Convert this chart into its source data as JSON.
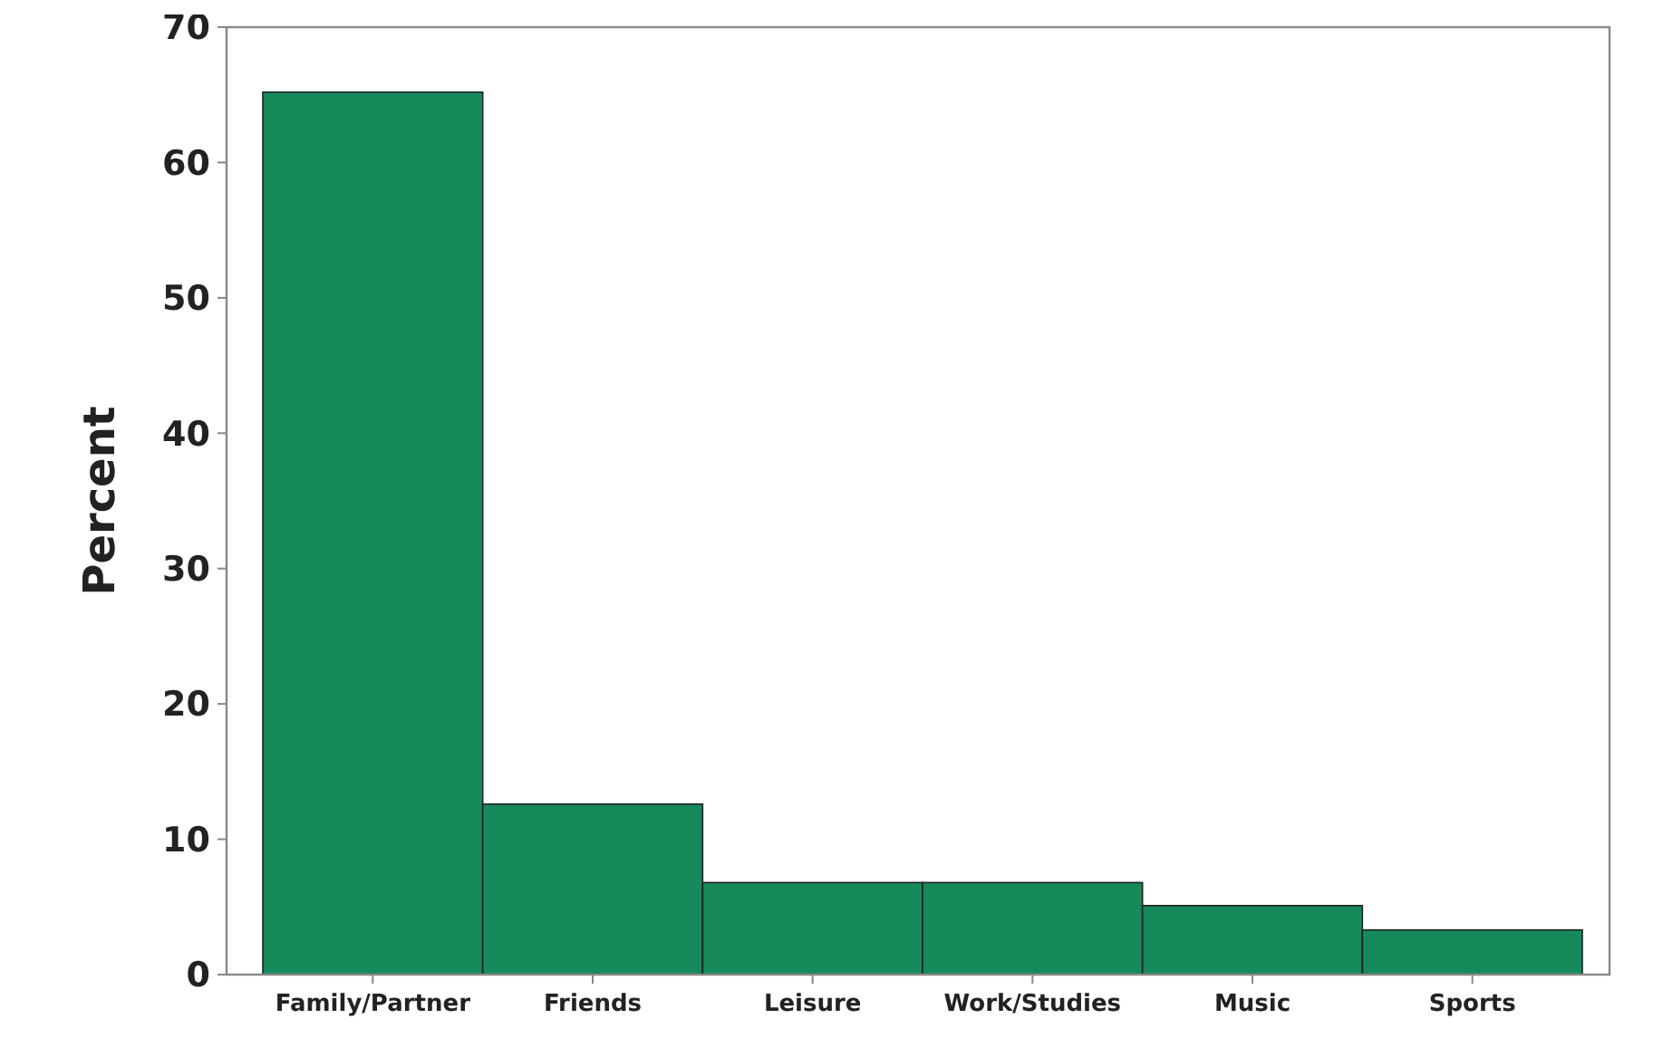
{
  "chart_data": {
    "type": "bar",
    "ylabel": "Percent",
    "categories": [
      "Family/Partner",
      "Friends",
      "Leisure",
      "Work/Studies",
      "Music",
      "Sports"
    ],
    "values": [
      65.2,
      12.6,
      6.8,
      6.8,
      5.1,
      3.3
    ],
    "color": "#178a5c",
    "ylim": [
      0,
      70
    ],
    "yticks": [
      0,
      10,
      20,
      30,
      40,
      50,
      60,
      70
    ],
    "grid": false
  }
}
